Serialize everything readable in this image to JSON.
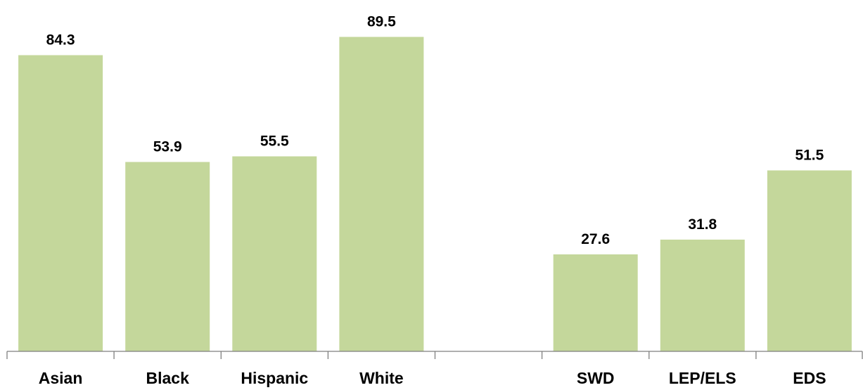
{
  "chart_data": {
    "type": "bar",
    "categories": [
      "Asian",
      "Black",
      "Hispanic",
      "White",
      "",
      "SWD",
      "LEP/ELS",
      "EDS"
    ],
    "values": [
      84.3,
      53.9,
      55.5,
      89.5,
      null,
      27.6,
      31.8,
      51.5
    ],
    "value_labels": [
      "84.3",
      "53.9",
      "55.5",
      "89.5",
      "",
      "27.6",
      "31.8",
      "51.5"
    ],
    "ylim": [
      0,
      100
    ],
    "grid": false,
    "legend": "none",
    "bar_color": "#c4d79b",
    "axis_color": "#7f7f7f"
  }
}
